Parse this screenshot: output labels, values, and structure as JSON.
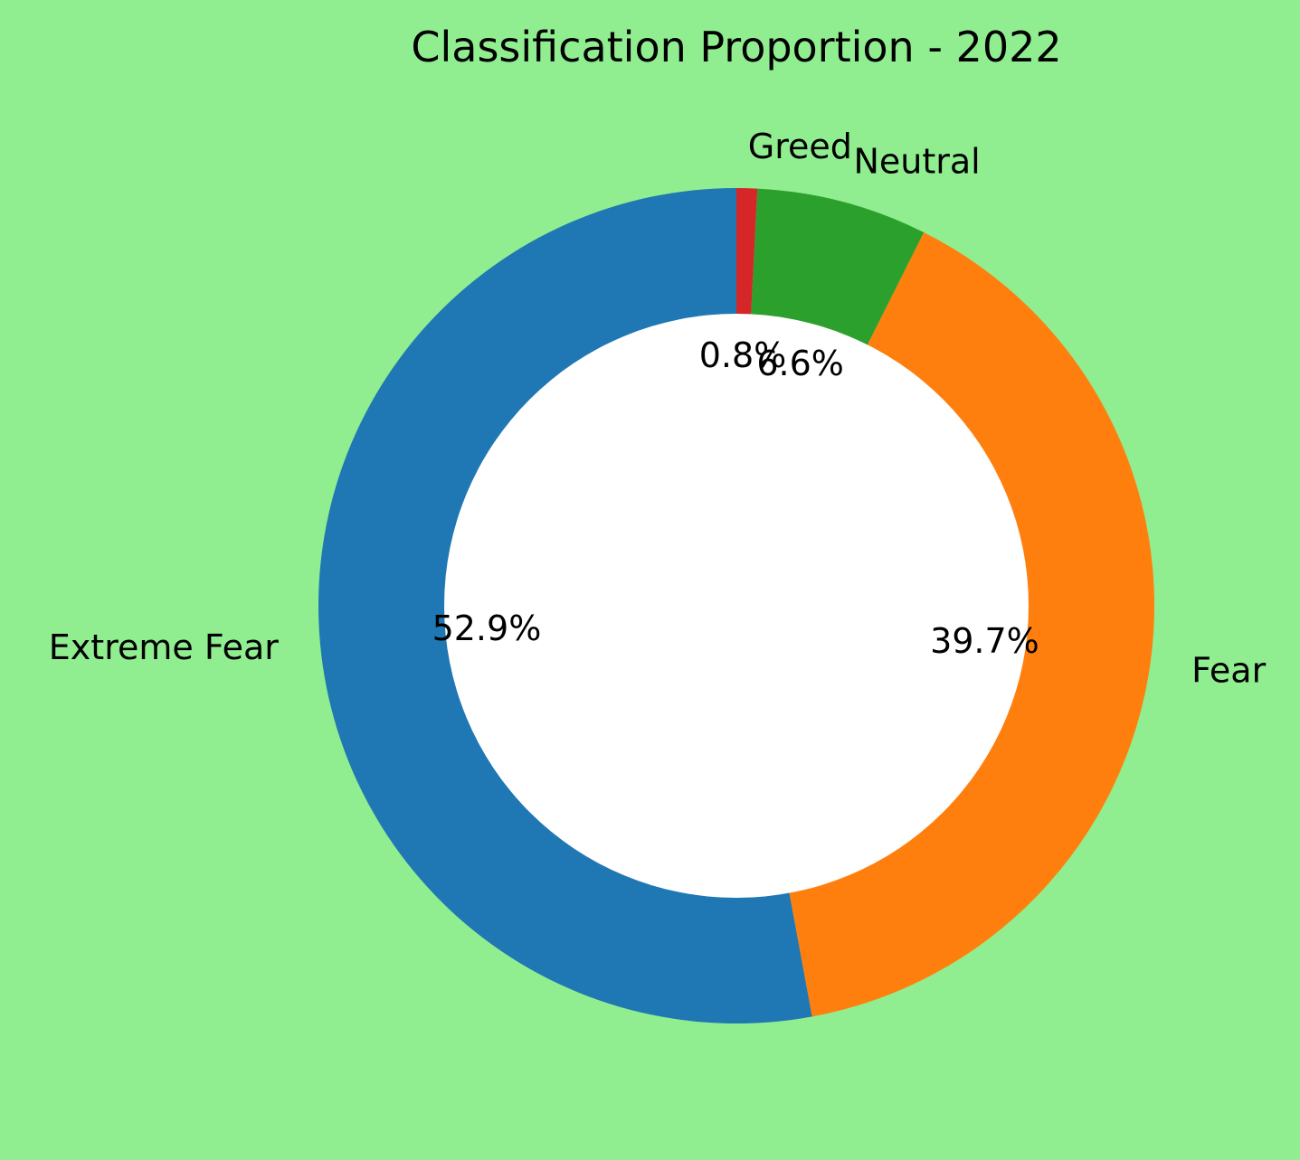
{
  "chart_data": {
    "type": "pie",
    "title": "Classification Proportion - 2022",
    "start_angle_deg": 90,
    "direction": "counterclockwise",
    "donut": true,
    "background_color": "#90ee90",
    "hole_color": "#ffffff",
    "slices": [
      {
        "label": "Extreme Fear",
        "value": 52.9,
        "pct_label": "52.9%",
        "color": "#1f77b4"
      },
      {
        "label": "Fear",
        "value": 39.7,
        "pct_label": "39.7%",
        "color": "#ff7f0e"
      },
      {
        "label": "Neutral",
        "value": 6.6,
        "pct_label": "6.6%",
        "color": "#2ca02c"
      },
      {
        "label": "Greed",
        "value": 0.8,
        "pct_label": "0.8%",
        "color": "#d62728"
      }
    ]
  }
}
